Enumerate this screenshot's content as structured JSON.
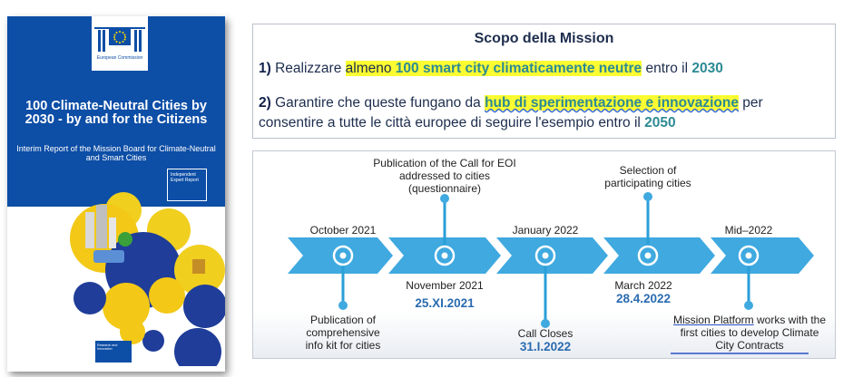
{
  "cover": {
    "logo_text": "European Commission",
    "title": "100 Climate-Neutral Cities by 2030 - by and for the Citizens",
    "subtitle": "Interim Report of the Mission Board for Climate-Neutral and Smart Cities",
    "tag": "Independent Expert Report",
    "footer_text": "Research and Innovation"
  },
  "scope": {
    "title": "Scopo della Mission",
    "item1": {
      "number": "1)",
      "pre": "Realizzare ",
      "hl_pre": "almeno ",
      "hl_bold": "100 smart city climaticamente neutre",
      "post": " entro il ",
      "year": "2030"
    },
    "item2": {
      "number": "2)",
      "pre": "Garantire che queste fungano da ",
      "hl_bold": "hub di sperimentazione e innovazione",
      "post": " per",
      "line2": "consentire a tutte le città europee di seguire l'esempio entro il ",
      "year": "2050"
    }
  },
  "timeline": {
    "above": [
      {
        "label": "October 2021"
      },
      {
        "label": "Publication of the Call for EOI addressed to cities (questionnaire)"
      },
      {
        "label": "January 2022"
      },
      {
        "label": "Selection of participating cities"
      },
      {
        "label": "Mid–2022"
      }
    ],
    "below": [
      {
        "label": "Publication of comprehensive info kit for cities"
      },
      {
        "label": "November 2021",
        "date": "25.XI.2021"
      },
      {
        "label": "Call Closes",
        "date": "31.I.2022"
      },
      {
        "label": "March 2022",
        "date": "28.4.2022"
      },
      {
        "label_underlined": "Mission Platform",
        "label_rest": " works with the first cities to develop ",
        "label_end": "Climate City Contracts"
      }
    ]
  },
  "colors": {
    "cover_blue": "#0d4ea6",
    "arrow_blue": "#3fa9e0",
    "highlight_yellow": "#fbfc31",
    "teal": "#2d8a94",
    "date_blue": "#2a6bb0"
  }
}
